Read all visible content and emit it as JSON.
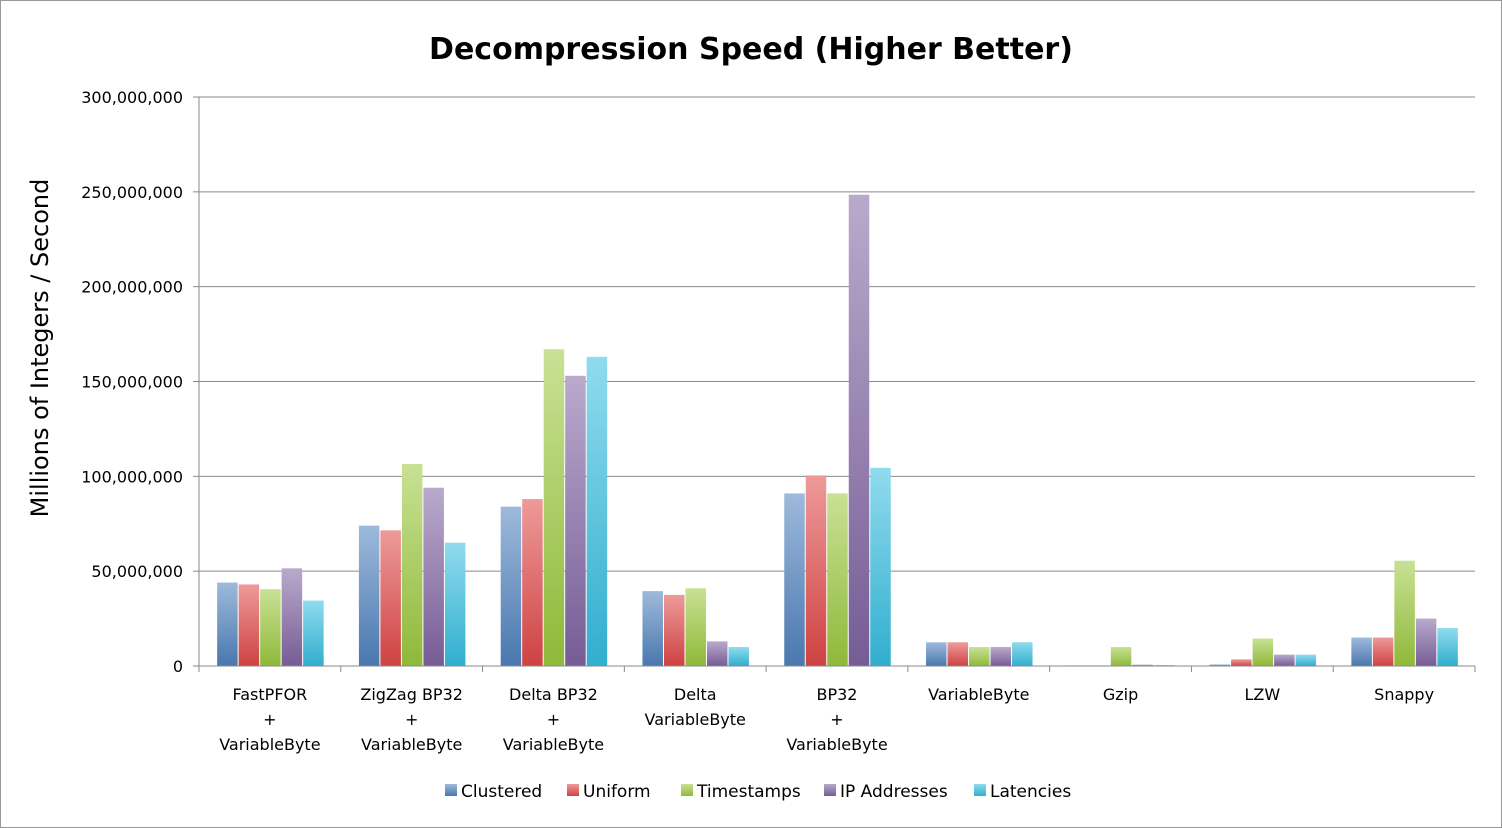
{
  "chart_data": {
    "type": "bar",
    "title": "Decompression Speed (Higher Better)",
    "xlabel": "",
    "ylabel": "Millions of Integers / Second",
    "ylim": [
      0,
      300000000
    ],
    "yticks": [
      0,
      50000000,
      100000000,
      150000000,
      200000000,
      250000000,
      300000000
    ],
    "ytick_labels": [
      "0",
      "50,000,000",
      "100,000,000",
      "150,000,000",
      "200,000,000",
      "250,000,000",
      "300,000,000"
    ],
    "grid": true,
    "legend_position": "bottom",
    "categories": [
      [
        "FastPFOR",
        "+",
        "VariableByte"
      ],
      [
        "ZigZag BP32",
        "+",
        "VariableByte"
      ],
      [
        "Delta BP32",
        "+",
        "VariableByte"
      ],
      [
        "Delta",
        "VariableByte"
      ],
      [
        "BP32",
        "+",
        "VariableByte"
      ],
      [
        "VariableByte"
      ],
      [
        "Gzip"
      ],
      [
        "LZW"
      ],
      [
        "Snappy"
      ]
    ],
    "series": [
      {
        "name": "Clustered",
        "color": "#4f81bd",
        "values": [
          44000000,
          74000000,
          84000000,
          39500000,
          91000000,
          12500000,
          300000,
          800000,
          15000000
        ]
      },
      {
        "name": "Uniform",
        "color": "#e04848",
        "values": [
          43000000,
          71500000,
          88000000,
          37500000,
          100500000,
          12500000,
          300000,
          3500000,
          15000000
        ]
      },
      {
        "name": "Timestamps",
        "color": "#9bc93e",
        "values": [
          40500000,
          106500000,
          167000000,
          41000000,
          91000000,
          10000000,
          10000000,
          14500000,
          55500000
        ]
      },
      {
        "name": "IP Addresses",
        "color": "#8064a2",
        "values": [
          51500000,
          94000000,
          153000000,
          13000000,
          248500000,
          10000000,
          700000,
          6000000,
          25000000
        ]
      },
      {
        "name": "Latencies",
        "color": "#35bde0",
        "values": [
          34500000,
          65000000,
          163000000,
          10000000,
          104500000,
          12500000,
          500000,
          6000000,
          20000000
        ]
      }
    ]
  }
}
